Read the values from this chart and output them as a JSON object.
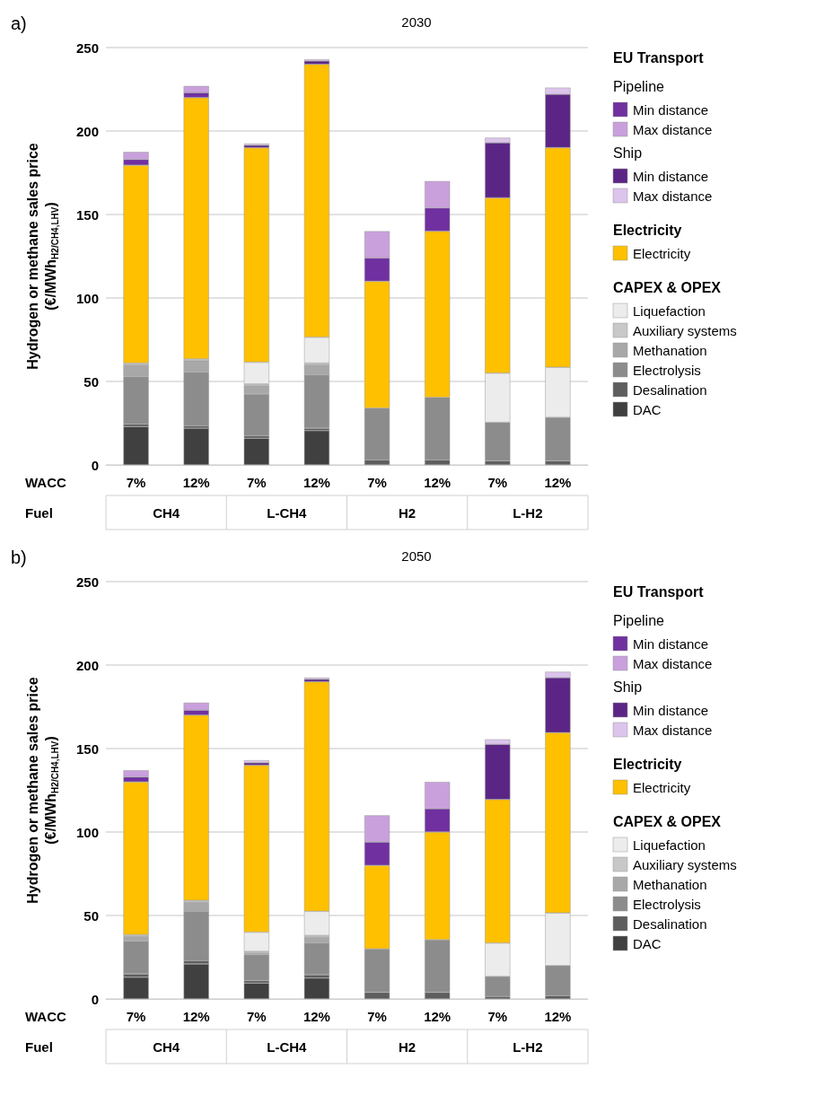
{
  "chart_data": [
    {
      "type": "bar",
      "title": "2030",
      "stacked": true,
      "ylabel": "Hydrogen or methane sales price (€/MWh$_{H2/CH4,LHV}$)",
      "legend_title": "EU Transport",
      "legend": "right",
      "grid": "y",
      "categories": [
        "7%",
        "12%",
        "7%",
        "12%",
        "7%",
        "12%",
        "7%",
        "12%"
      ],
      "ylim": [
        0,
        250
      ],
      "yticks": [
        0,
        50,
        100,
        150,
        200,
        250
      ],
      "annotations": [
        "a)",
        "WACC",
        "Fuel",
        "CH4",
        "L-CH4",
        "H2",
        "L-H2",
        "Pipeline",
        "Ship",
        "Electricity",
        "CAPEX & OPEX"
      ],
      "series": [
        {
          "name": "DAC",
          "color": "#404040",
          "values": [
            23,
            22,
            16,
            20.5,
            null,
            null,
            null,
            null
          ]
        },
        {
          "name": "Desalination",
          "color": "#5e5e5e",
          "values": [
            1.5,
            1.5,
            1.5,
            1.5,
            3,
            3,
            2.5,
            2.5
          ]
        },
        {
          "name": "Electrolysis",
          "color": "#8c8c8c",
          "values": [
            28.5,
            32,
            25,
            32,
            31,
            37.5,
            23,
            26
          ]
        },
        {
          "name": "Methanation",
          "color": "#a8a8a8",
          "values": [
            7,
            7,
            5,
            6,
            null,
            null,
            null,
            null
          ]
        },
        {
          "name": "Auxiliary systems",
          "color": "#c8c8c8",
          "values": [
            1,
            1,
            1,
            1,
            null,
            null,
            null,
            null
          ]
        },
        {
          "name": "Liquefaction",
          "color": "#ececec",
          "values": [
            null,
            null,
            13,
            15.5,
            null,
            null,
            29.5,
            30
          ]
        },
        {
          "name": "Electricity",
          "color": "#ffc000",
          "values": [
            118.5,
            156.5,
            128.5,
            163.5,
            76,
            99.5,
            105,
            131.5
          ]
        },
        {
          "name": "Min distance",
          "color": "#7030a0",
          "values": [
            3.5,
            3,
            null,
            null,
            14,
            14,
            null,
            null
          ]
        },
        {
          "name": "Max distance",
          "color": "#c9a0dc",
          "values": [
            4.5,
            4,
            null,
            null,
            16,
            16,
            null,
            null
          ]
        },
        {
          "name": "Min distance",
          "color": "#5b2585",
          "values": [
            null,
            null,
            1.5,
            2,
            null,
            null,
            33,
            32
          ]
        },
        {
          "name": "Max distance",
          "color": "#dcc4ec",
          "values": [
            null,
            null,
            1,
            1,
            null,
            null,
            3,
            4
          ]
        }
      ]
    },
    {
      "type": "bar",
      "title": "2050",
      "stacked": true,
      "ylabel": "Hydrogen or methane sales price (€/MWh$_{H2/CH4,LHV}$)",
      "legend_title": "EU Transport",
      "legend": "right",
      "grid": "y",
      "categories": [
        "7%",
        "12%",
        "7%",
        "12%",
        "7%",
        "12%",
        "7%",
        "12%"
      ],
      "ylim": [
        0,
        250
      ],
      "yticks": [
        0,
        50,
        100,
        150,
        200,
        250
      ],
      "annotations": [
        "b)",
        "WACC",
        "Fuel",
        "CH4",
        "L-CH4",
        "H2",
        "L-H2",
        "Pipeline",
        "Ship",
        "Electricity",
        "CAPEX & OPEX"
      ],
      "series": [
        {
          "name": "DAC",
          "color": "#404040",
          "values": [
            13,
            21,
            9.5,
            12.5,
            null,
            null,
            null,
            null
          ]
        },
        {
          "name": "Desalination",
          "color": "#5e5e5e",
          "values": [
            2,
            2,
            1.5,
            2,
            4,
            4,
            1.5,
            2
          ]
        },
        {
          "name": "Electrolysis",
          "color": "#8c8c8c",
          "values": [
            19.5,
            29.5,
            15.5,
            19,
            26,
            31.5,
            12,
            18
          ]
        },
        {
          "name": "Methanation",
          "color": "#a8a8a8",
          "values": [
            3,
            5.5,
            1,
            3.5,
            null,
            null,
            null,
            null
          ]
        },
        {
          "name": "Auxiliary systems",
          "color": "#c8c8c8",
          "values": [
            1,
            1,
            1,
            1,
            null,
            null,
            null,
            null
          ]
        },
        {
          "name": "Liquefaction",
          "color": "#ececec",
          "values": [
            null,
            null,
            11.5,
            14.5,
            null,
            null,
            20,
            31.5
          ]
        },
        {
          "name": "Electricity",
          "color": "#ffc000",
          "values": [
            91.5,
            111,
            100,
            137.5,
            50,
            64.5,
            86,
            108
          ]
        },
        {
          "name": "Min distance",
          "color": "#7030a0",
          "values": [
            3,
            3,
            null,
            null,
            14,
            14,
            null,
            null
          ]
        },
        {
          "name": "Max distance",
          "color": "#c9a0dc",
          "values": [
            4,
            4.5,
            null,
            null,
            16,
            16,
            null,
            null
          ]
        },
        {
          "name": "Min distance",
          "color": "#5b2585",
          "values": [
            null,
            null,
            1.5,
            1.5,
            null,
            null,
            33,
            33
          ]
        },
        {
          "name": "Max distance",
          "color": "#dcc4ec",
          "values": [
            null,
            null,
            1.5,
            1,
            null,
            null,
            3,
            3.5
          ]
        }
      ]
    }
  ]
}
